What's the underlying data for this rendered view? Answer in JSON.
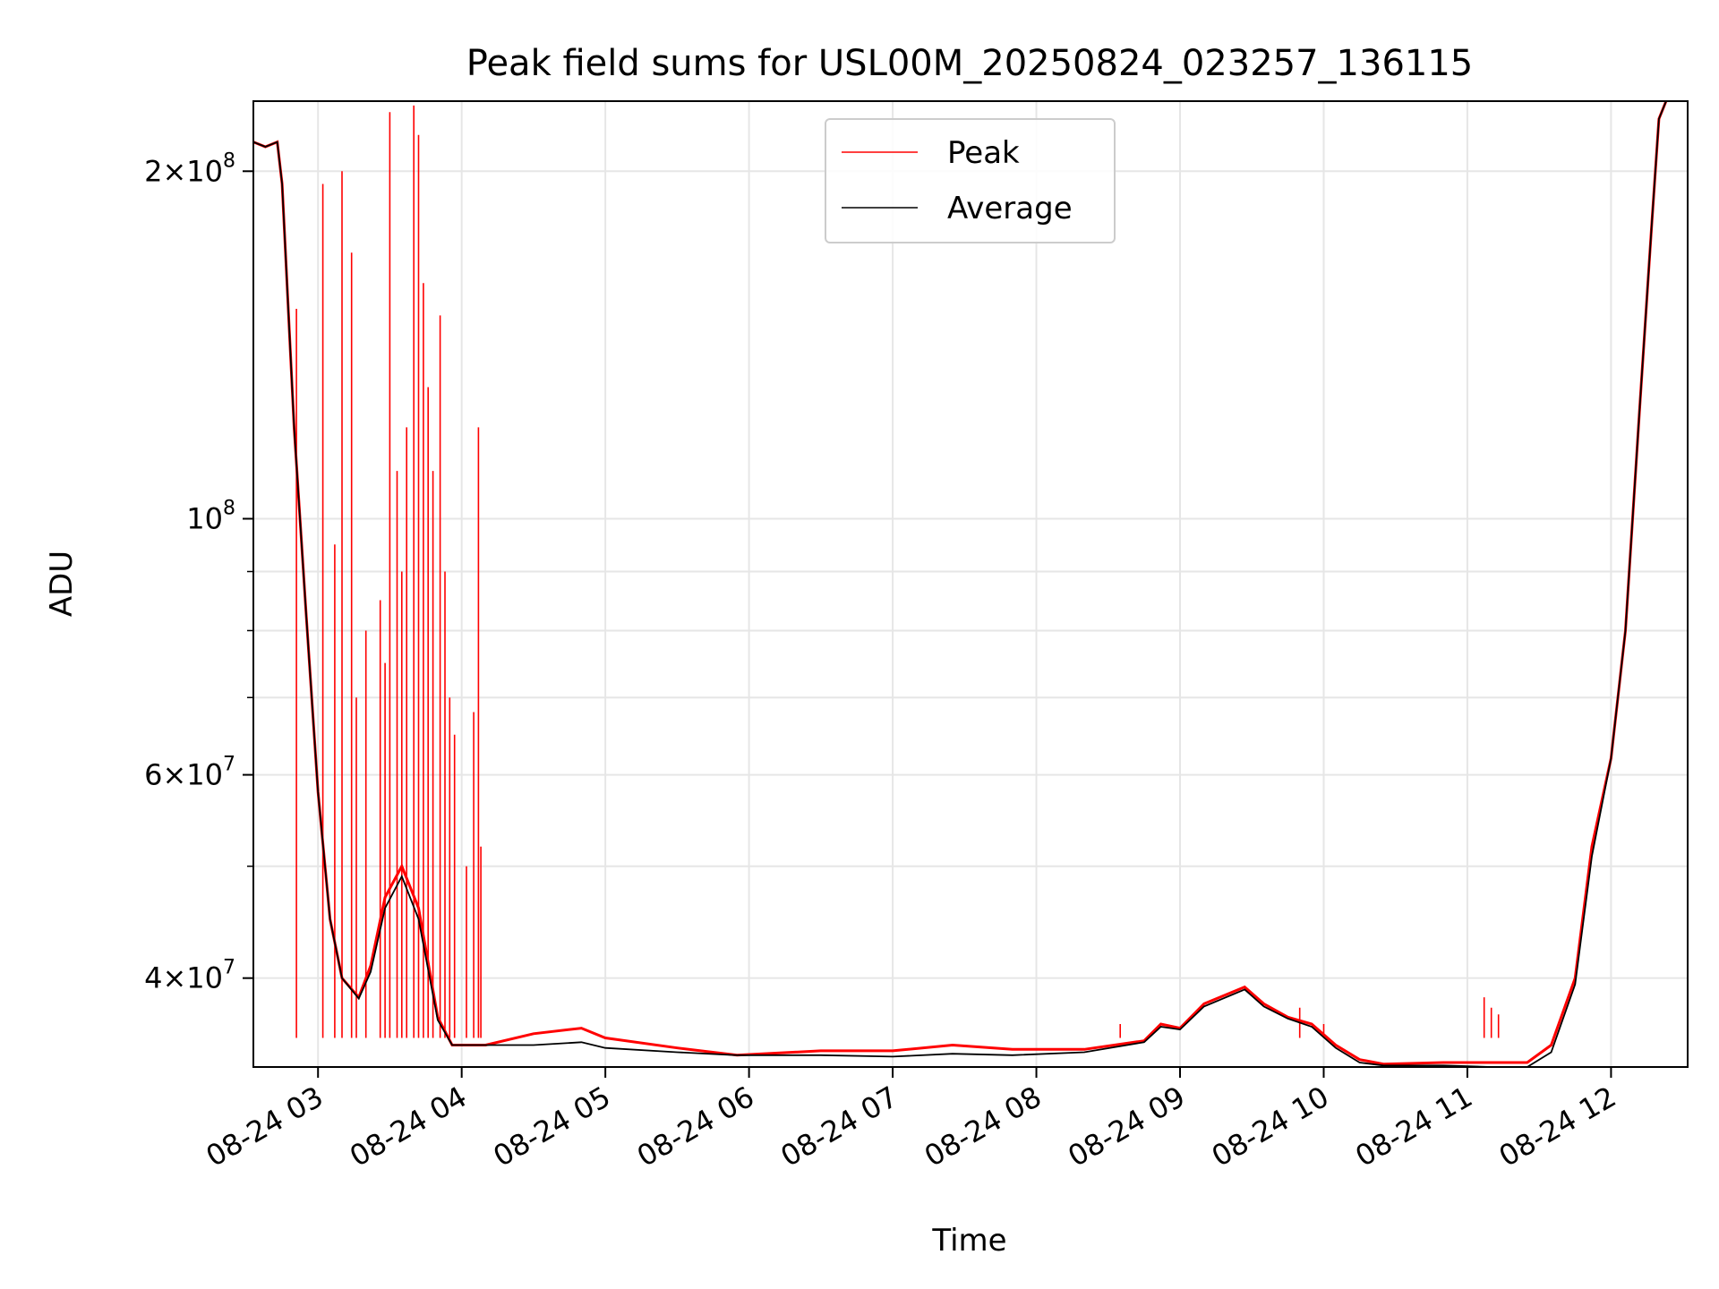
{
  "chart_data": {
    "type": "line",
    "title": "Peak field sums for USL00M_20250824_023257_136115",
    "xlabel": "Time",
    "ylabel": "ADU",
    "y_scale": "log",
    "ylim": [
      33500000,
      230000000
    ],
    "xlim": [
      "2025-08-24 02:33",
      "2025-08-24 12:32"
    ],
    "grid": true,
    "legend_position": "top-center",
    "x_ticks": [
      {
        "value": "2025-08-24 03:00",
        "label": "08-24 03"
      },
      {
        "value": "2025-08-24 04:00",
        "label": "08-24 04"
      },
      {
        "value": "2025-08-24 05:00",
        "label": "08-24 05"
      },
      {
        "value": "2025-08-24 06:00",
        "label": "08-24 06"
      },
      {
        "value": "2025-08-24 07:00",
        "label": "08-24 07"
      },
      {
        "value": "2025-08-24 08:00",
        "label": "08-24 08"
      },
      {
        "value": "2025-08-24 09:00",
        "label": "08-24 09"
      },
      {
        "value": "2025-08-24 10:00",
        "label": "08-24 10"
      },
      {
        "value": "2025-08-24 11:00",
        "label": "08-24 11"
      },
      {
        "value": "2025-08-24 12:00",
        "label": "08-24 12"
      }
    ],
    "y_ticks": [
      {
        "value": 40000000,
        "mantissa": "4",
        "exponent": "7"
      },
      {
        "value": 60000000,
        "mantissa": "6",
        "exponent": "7"
      },
      {
        "value": 100000000,
        "mantissa": "",
        "exponent": "8"
      },
      {
        "value": 200000000,
        "mantissa": "2",
        "exponent": "8"
      }
    ],
    "y_minor_ticks": [
      50000000,
      70000000,
      80000000,
      90000000
    ],
    "series": [
      {
        "name": "Peak",
        "color": "#ff0000",
        "points": [
          [
            "2025-08-24 02:33",
            212000000
          ],
          [
            "2025-08-24 02:38",
            210000000
          ],
          [
            "2025-08-24 02:43",
            212000000
          ],
          [
            "2025-08-24 02:45",
            195000000
          ],
          [
            "2025-08-24 02:50",
            120000000
          ],
          [
            "2025-08-24 02:55",
            83000000
          ],
          [
            "2025-08-24 03:00",
            58000000
          ],
          [
            "2025-08-24 03:05",
            45000000
          ],
          [
            "2025-08-24 03:10",
            40000000
          ],
          [
            "2025-08-24 03:17",
            38500000
          ],
          [
            "2025-08-24 03:22",
            41000000
          ],
          [
            "2025-08-24 03:28",
            47000000
          ],
          [
            "2025-08-24 03:35",
            50000000
          ],
          [
            "2025-08-24 03:42",
            46000000
          ],
          [
            "2025-08-24 03:50",
            37000000
          ],
          [
            "2025-08-24 03:56",
            35000000
          ],
          [
            "2025-08-24 04:10",
            35000000
          ],
          [
            "2025-08-24 04:30",
            35800000
          ],
          [
            "2025-08-24 04:50",
            36200000
          ],
          [
            "2025-08-24 05:00",
            35500000
          ],
          [
            "2025-08-24 05:30",
            34800000
          ],
          [
            "2025-08-24 05:55",
            34300000
          ],
          [
            "2025-08-24 06:30",
            34600000
          ],
          [
            "2025-08-24 07:00",
            34600000
          ],
          [
            "2025-08-24 07:25",
            35000000
          ],
          [
            "2025-08-24 07:50",
            34700000
          ],
          [
            "2025-08-24 08:20",
            34700000
          ],
          [
            "2025-08-24 08:45",
            35300000
          ],
          [
            "2025-08-24 08:52",
            36500000
          ],
          [
            "2025-08-24 09:00",
            36200000
          ],
          [
            "2025-08-24 09:10",
            38000000
          ],
          [
            "2025-08-24 09:27",
            39300000
          ],
          [
            "2025-08-24 09:35",
            38000000
          ],
          [
            "2025-08-24 09:45",
            37000000
          ],
          [
            "2025-08-24 09:55",
            36500000
          ],
          [
            "2025-08-24 10:05",
            35000000
          ],
          [
            "2025-08-24 10:15",
            34000000
          ],
          [
            "2025-08-24 10:25",
            33700000
          ],
          [
            "2025-08-24 10:50",
            33800000
          ],
          [
            "2025-08-24 11:10",
            33800000
          ],
          [
            "2025-08-24 11:25",
            33800000
          ],
          [
            "2025-08-24 11:35",
            35000000
          ],
          [
            "2025-08-24 11:45",
            40000000
          ],
          [
            "2025-08-24 11:52",
            52000000
          ],
          [
            "2025-08-24 12:00",
            62000000
          ],
          [
            "2025-08-24 12:06",
            80000000
          ],
          [
            "2025-08-24 12:12",
            125000000
          ],
          [
            "2025-08-24 12:17",
            180000000
          ],
          [
            "2025-08-24 12:20",
            222000000
          ],
          [
            "2025-08-24 12:23",
            230000000
          ]
        ]
      },
      {
        "name": "Average",
        "color": "#000000",
        "points": [
          [
            "2025-08-24 02:33",
            212000000
          ],
          [
            "2025-08-24 02:38",
            210000000
          ],
          [
            "2025-08-24 02:43",
            212000000
          ],
          [
            "2025-08-24 02:45",
            195000000
          ],
          [
            "2025-08-24 02:50",
            120000000
          ],
          [
            "2025-08-24 02:55",
            83000000
          ],
          [
            "2025-08-24 03:00",
            58000000
          ],
          [
            "2025-08-24 03:05",
            45000000
          ],
          [
            "2025-08-24 03:10",
            40000000
          ],
          [
            "2025-08-24 03:17",
            38400000
          ],
          [
            "2025-08-24 03:22",
            40500000
          ],
          [
            "2025-08-24 03:28",
            46000000
          ],
          [
            "2025-08-24 03:35",
            49000000
          ],
          [
            "2025-08-24 03:42",
            45000000
          ],
          [
            "2025-08-24 03:50",
            36800000
          ],
          [
            "2025-08-24 03:56",
            35000000
          ],
          [
            "2025-08-24 04:10",
            35000000
          ],
          [
            "2025-08-24 04:30",
            35000000
          ],
          [
            "2025-08-24 04:50",
            35200000
          ],
          [
            "2025-08-24 05:00",
            34800000
          ],
          [
            "2025-08-24 05:30",
            34500000
          ],
          [
            "2025-08-24 05:55",
            34300000
          ],
          [
            "2025-08-24 06:30",
            34300000
          ],
          [
            "2025-08-24 07:00",
            34200000
          ],
          [
            "2025-08-24 07:25",
            34400000
          ],
          [
            "2025-08-24 07:50",
            34300000
          ],
          [
            "2025-08-24 08:20",
            34500000
          ],
          [
            "2025-08-24 08:45",
            35200000
          ],
          [
            "2025-08-24 08:52",
            36300000
          ],
          [
            "2025-08-24 09:00",
            36100000
          ],
          [
            "2025-08-24 09:10",
            37800000
          ],
          [
            "2025-08-24 09:27",
            39100000
          ],
          [
            "2025-08-24 09:35",
            37800000
          ],
          [
            "2025-08-24 09:45",
            36900000
          ],
          [
            "2025-08-24 09:55",
            36300000
          ],
          [
            "2025-08-24 10:05",
            34800000
          ],
          [
            "2025-08-24 10:15",
            33800000
          ],
          [
            "2025-08-24 10:25",
            33600000
          ],
          [
            "2025-08-24 10:50",
            33600000
          ],
          [
            "2025-08-24 11:10",
            33500000
          ],
          [
            "2025-08-24 11:25",
            33500000
          ],
          [
            "2025-08-24 11:35",
            34500000
          ],
          [
            "2025-08-24 11:45",
            39500000
          ],
          [
            "2025-08-24 11:52",
            51000000
          ],
          [
            "2025-08-24 12:00",
            62000000
          ],
          [
            "2025-08-24 12:06",
            80000000
          ],
          [
            "2025-08-24 12:12",
            125000000
          ],
          [
            "2025-08-24 12:17",
            180000000
          ],
          [
            "2025-08-24 12:20",
            222000000
          ],
          [
            "2025-08-24 12:23",
            230000000
          ]
        ]
      }
    ],
    "peak_spikes": [
      [
        "2025-08-24 02:51",
        152000000
      ],
      [
        "2025-08-24 03:02",
        195000000
      ],
      [
        "2025-08-24 03:07",
        95000000
      ],
      [
        "2025-08-24 03:10",
        200000000
      ],
      [
        "2025-08-24 03:14",
        170000000
      ],
      [
        "2025-08-24 03:16",
        70000000
      ],
      [
        "2025-08-24 03:20",
        80000000
      ],
      [
        "2025-08-24 03:26",
        85000000
      ],
      [
        "2025-08-24 03:28",
        75000000
      ],
      [
        "2025-08-24 03:30",
        225000000
      ],
      [
        "2025-08-24 03:33",
        110000000
      ],
      [
        "2025-08-24 03:35",
        90000000
      ],
      [
        "2025-08-24 03:37",
        120000000
      ],
      [
        "2025-08-24 03:40",
        228000000
      ],
      [
        "2025-08-24 03:42",
        215000000
      ],
      [
        "2025-08-24 03:44",
        160000000
      ],
      [
        "2025-08-24 03:46",
        130000000
      ],
      [
        "2025-08-24 03:48",
        110000000
      ],
      [
        "2025-08-24 03:51",
        150000000
      ],
      [
        "2025-08-24 03:53",
        90000000
      ],
      [
        "2025-08-24 03:55",
        70000000
      ],
      [
        "2025-08-24 03:57",
        65000000
      ],
      [
        "2025-08-24 04:02",
        50000000
      ],
      [
        "2025-08-24 04:05",
        68000000
      ],
      [
        "2025-08-24 04:07",
        120000000
      ],
      [
        "2025-08-24 04:08",
        52000000
      ],
      [
        "2025-08-24 08:35",
        36500000
      ],
      [
        "2025-08-24 09:50",
        37700000
      ],
      [
        "2025-08-24 10:00",
        36500000
      ],
      [
        "2025-08-24 11:07",
        38500000
      ],
      [
        "2025-08-24 11:10",
        37700000
      ],
      [
        "2025-08-24 11:13",
        37200000
      ]
    ]
  }
}
